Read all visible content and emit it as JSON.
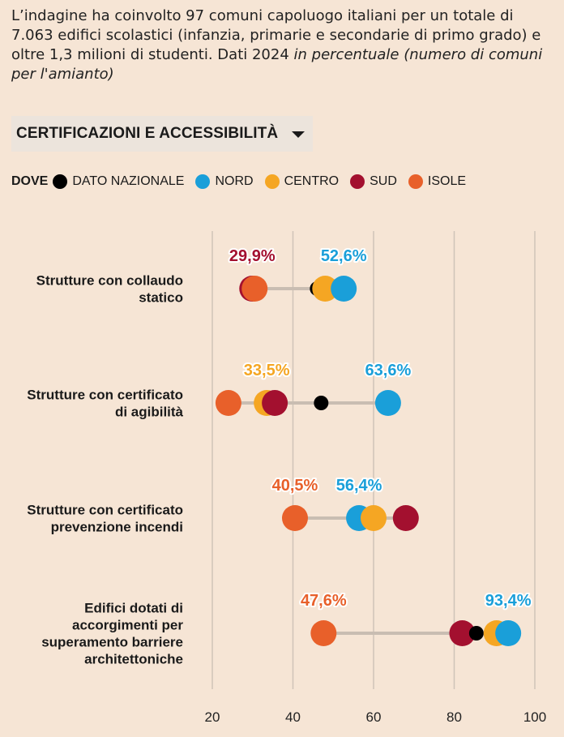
{
  "intro": {
    "text": "L’indagine ha coinvolto 97 comuni capoluogo italiani per un totale di 7.063 edifici scolastici (infanzia, primarie e secondarie di primo grado) e oltre 1,3 milioni di studenti. Dati 2024 ",
    "italic": "in percentuale (numero di comuni per l'amianto)"
  },
  "dropdown": {
    "label": "CERTIFICAZIONI E ACCESSIBILITÀ",
    "icon": "caret-down-icon"
  },
  "legend": {
    "title": "DOVE",
    "items": [
      {
        "label": "DATO NAZIONALE",
        "color": "#000000"
      },
      {
        "label": "NORD",
        "color": "#1a9fd9"
      },
      {
        "label": "CENTRO",
        "color": "#f5a623"
      },
      {
        "label": "SUD",
        "color": "#a3102f"
      },
      {
        "label": "ISOLE",
        "color": "#e8602a"
      }
    ]
  },
  "chart_data": {
    "type": "dot-plot",
    "xlim": [
      20,
      100
    ],
    "xticks": [
      "20",
      "40",
      "60",
      "80",
      "100"
    ],
    "grid": true,
    "categories": [
      {
        "label_lines": [
          "Strutture con collaudo",
          "statico"
        ],
        "values": {
          "nazionale": 46,
          "nord": 52.6,
          "centro": 48,
          "sud": 29.9,
          "isole": 30.5
        },
        "range": [
          29.9,
          52.6
        ],
        "annotations": [
          {
            "text": "29,9%",
            "value": 29.9,
            "series": "sud"
          },
          {
            "text": "52,6%",
            "value": 52.6,
            "series": "nord"
          }
        ]
      },
      {
        "label_lines": [
          "Strutture con certificato",
          "di agibilità"
        ],
        "values": {
          "nazionale": 47,
          "nord": 63.6,
          "centro": 33.5,
          "sud": 35.5,
          "isole": 24
        },
        "range": [
          24,
          63.6
        ],
        "annotations": [
          {
            "text": "33,5%",
            "value": 33.5,
            "series": "centro"
          },
          {
            "text": "63,6%",
            "value": 63.6,
            "series": "nord"
          }
        ]
      },
      {
        "label_lines": [
          "Strutture con certificato",
          "prevenzione incendi"
        ],
        "values": {
          "nazionale": 58,
          "nord": 56.4,
          "centro": 60,
          "sud": 68,
          "isole": 40.5
        },
        "range": [
          40.5,
          68
        ],
        "annotations": [
          {
            "text": "40,5%",
            "value": 40.5,
            "series": "isole"
          },
          {
            "text": "56,4%",
            "value": 56.4,
            "series": "nord"
          }
        ]
      },
      {
        "label_lines": [
          "Edifici dotati di",
          "accorgimenti per",
          "superamento barriere",
          "architettoniche"
        ],
        "values": {
          "nazionale": 85.5,
          "nord": 93.4,
          "centro": 90.5,
          "sud": 82,
          "isole": 47.6
        },
        "range": [
          47.6,
          93.4
        ],
        "annotations": [
          {
            "text": "47,6%",
            "value": 47.6,
            "series": "isole"
          },
          {
            "text": "93,4%",
            "value": 93.4,
            "series": "nord"
          }
        ]
      }
    ],
    "series_colors": {
      "nazionale": "#000000",
      "nord": "#1a9fd9",
      "centro": "#f5a623",
      "sud": "#a3102f",
      "isole": "#e8602a"
    },
    "draw_order": [
      [
        "sud",
        "isole",
        "nazionale",
        "centro",
        "nord"
      ],
      [
        "isole",
        "centro",
        "sud",
        "nazionale",
        "nord"
      ],
      [
        "isole",
        "nazionale",
        "nord",
        "centro",
        "sud"
      ],
      [
        "isole",
        "sud",
        "nazionale",
        "centro",
        "nord"
      ]
    ]
  }
}
